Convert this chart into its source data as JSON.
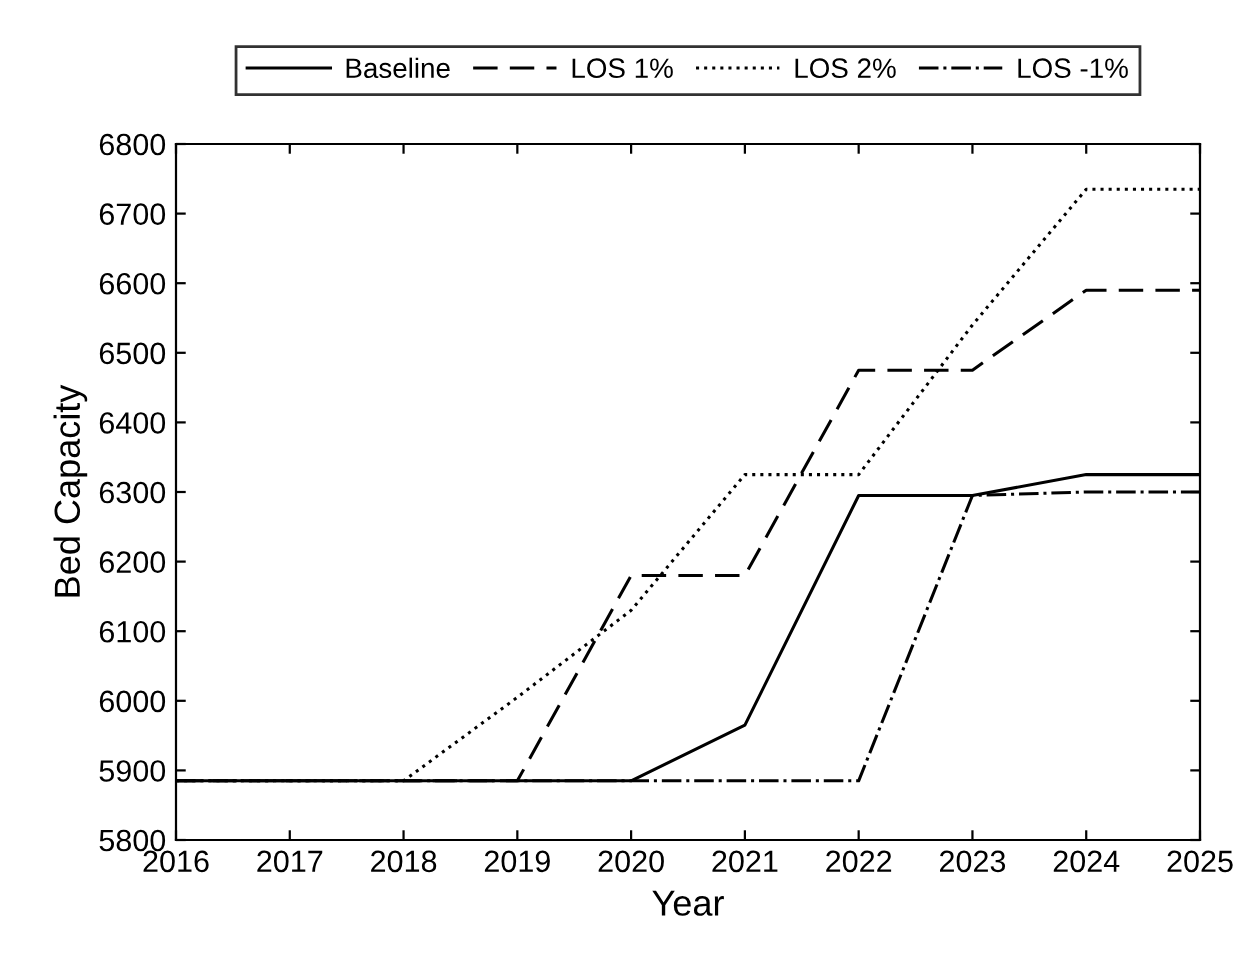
{
  "chart_data": {
    "type": "line",
    "xlabel": "Year",
    "ylabel": "Bed Capacity",
    "x": [
      2016,
      2017,
      2018,
      2019,
      2020,
      2021,
      2022,
      2023,
      2024,
      2025
    ],
    "series": [
      {
        "name": "Baseline",
        "color": "#000000",
        "line_style": "solid",
        "values": [
          5885,
          5885,
          5885,
          5885,
          5885,
          5965,
          6295,
          6295,
          6325,
          6325
        ]
      },
      {
        "name": "LOS 1%",
        "color": "#000000",
        "line_style": "dashed",
        "values": [
          5885,
          5885,
          5885,
          5885,
          6180,
          6180,
          6475,
          6475,
          6590,
          6590
        ]
      },
      {
        "name": "LOS 2%",
        "color": "#000000",
        "line_style": "dotted",
        "values": [
          5885,
          5885,
          5885,
          6005,
          6130,
          6325,
          6325,
          6540,
          6735,
          6735
        ]
      },
      {
        "name": "LOS -1%",
        "color": "#000000",
        "line_style": "dashdot",
        "values": [
          5885,
          5885,
          5885,
          5885,
          5885,
          5885,
          5885,
          6295,
          6300,
          6300
        ]
      }
    ],
    "xlim": [
      2016,
      2025
    ],
    "xticks": [
      2016,
      2017,
      2018,
      2019,
      2020,
      2021,
      2022,
      2023,
      2024,
      2025
    ],
    "ylim": [
      5800,
      6800
    ],
    "yticks": [
      5800,
      5900,
      6000,
      6100,
      6200,
      6300,
      6400,
      6500,
      6600,
      6700,
      6800
    ],
    "grid": false,
    "legend": "top"
  }
}
